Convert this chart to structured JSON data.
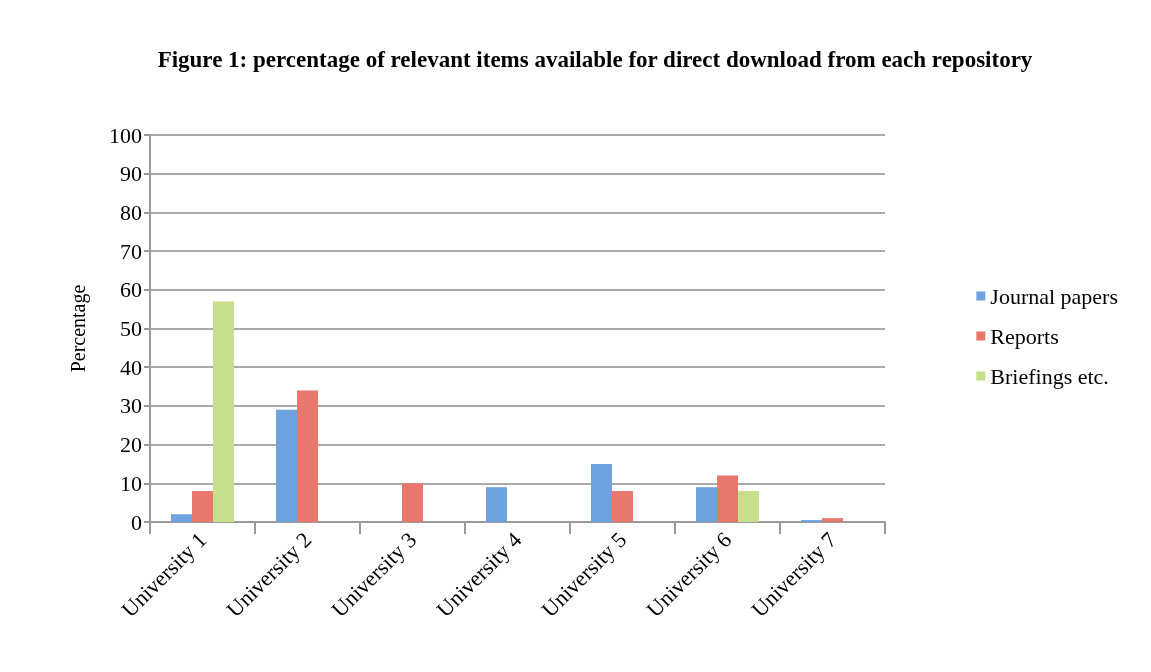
{
  "chart_data": {
    "type": "bar",
    "title": "Figure 1: percentage of relevant items available for direct download from each repository",
    "ylabel": "Percentage",
    "categories": [
      "University 1",
      "University 2",
      "University 3",
      "University 4",
      "University 5",
      "University 6",
      "University 7"
    ],
    "series": [
      {
        "name": "Journal papers",
        "color": "#6fa3e0",
        "values": [
          2,
          29,
          0,
          9,
          15,
          9,
          0.5
        ]
      },
      {
        "name": "Reports",
        "color": "#e8776e",
        "values": [
          8,
          34,
          10,
          0,
          8,
          12,
          1
        ]
      },
      {
        "name": "Briefings etc.",
        "color": "#c5df8a",
        "values": [
          57,
          0,
          0,
          0,
          0,
          8,
          0
        ]
      }
    ],
    "ylim": [
      0,
      100
    ],
    "yticks": [
      0,
      10,
      20,
      30,
      40,
      50,
      60,
      70,
      80,
      90,
      100
    ],
    "grid": "y",
    "legend": "right"
  }
}
